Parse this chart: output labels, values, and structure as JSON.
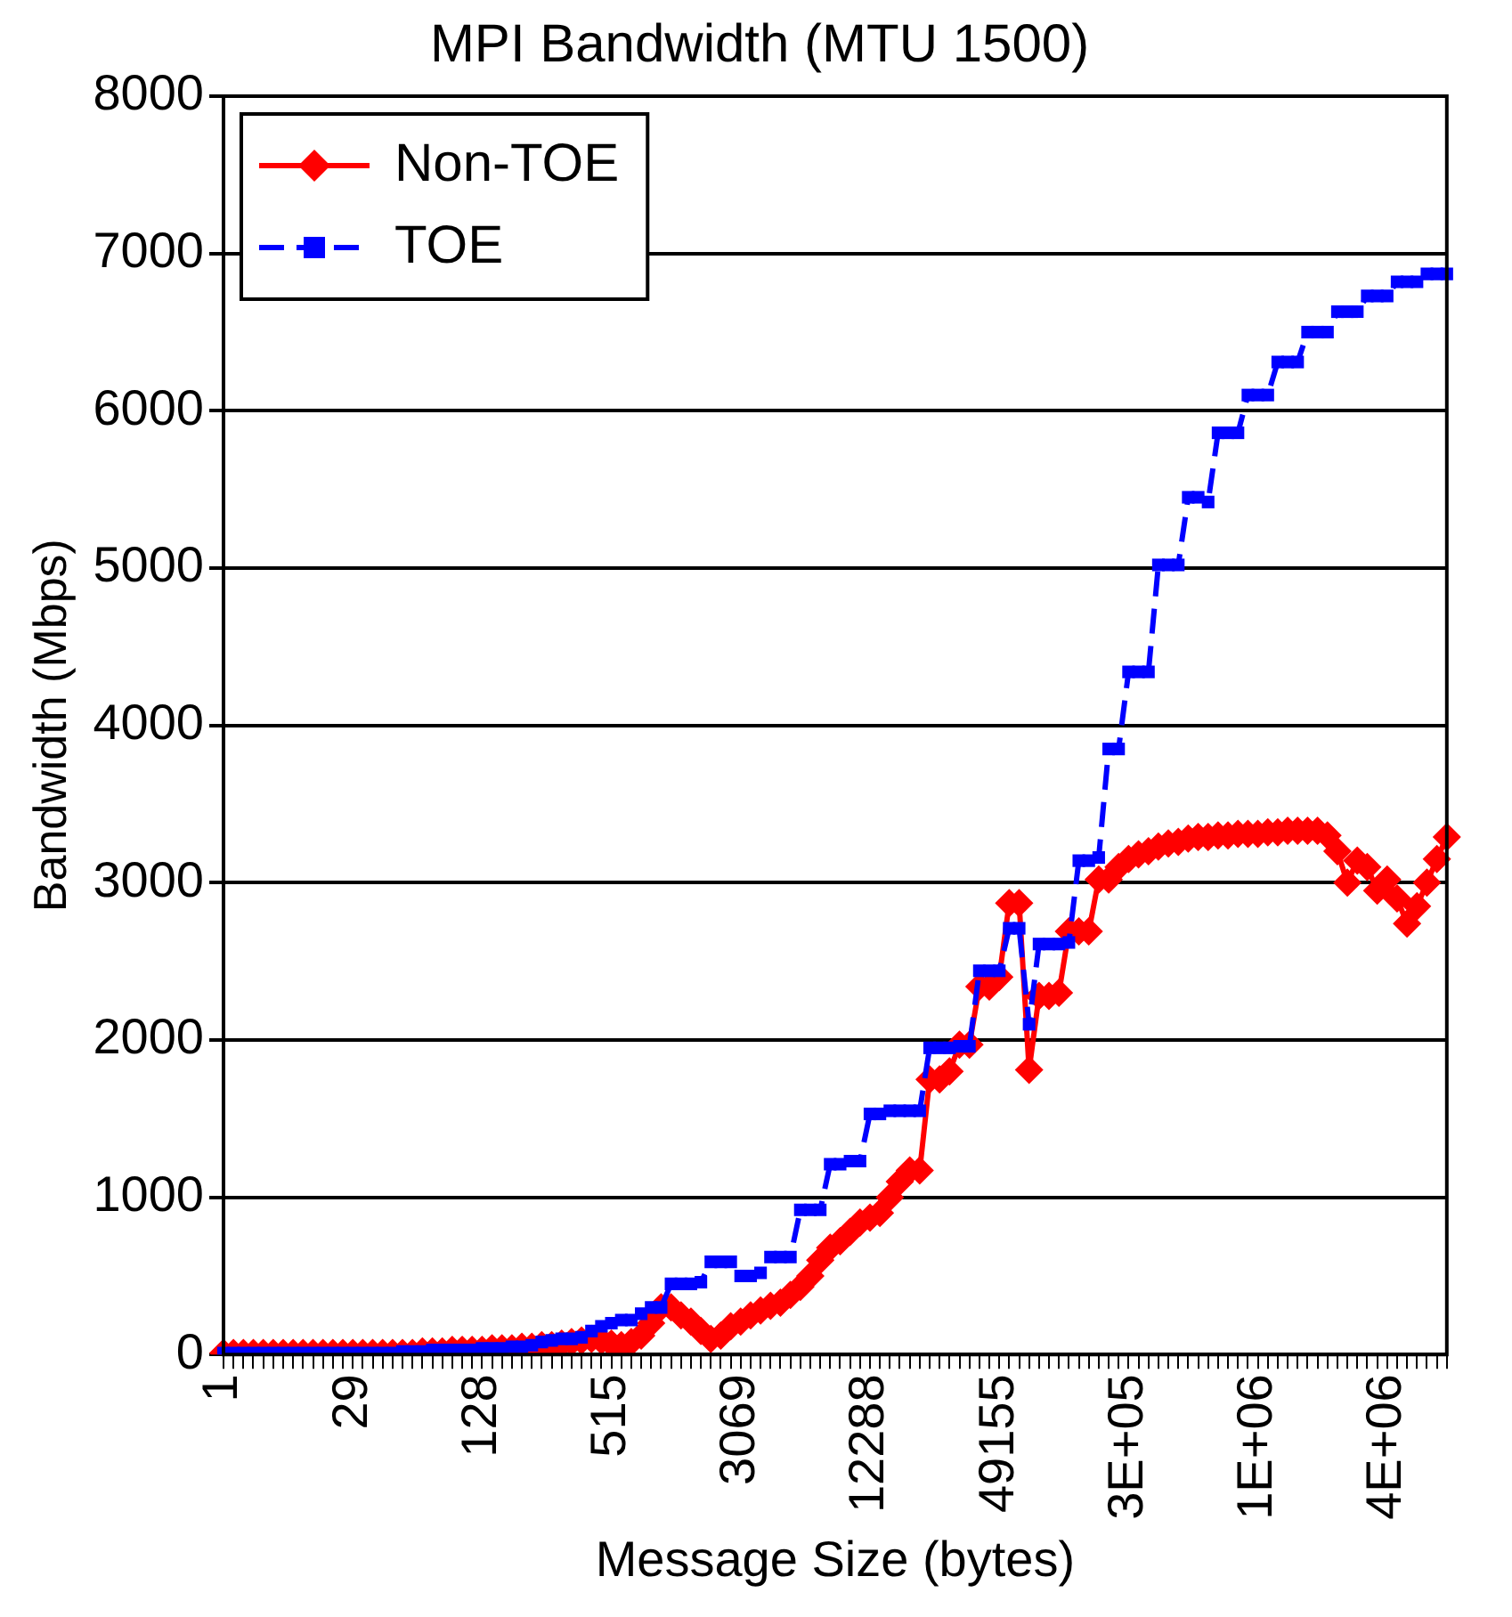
{
  "chart_data": {
    "type": "line",
    "title": "MPI Bandwidth (MTU 1500)",
    "xlabel": "Message Size (bytes)",
    "ylabel": "Bandwidth (Mbps)",
    "categories": [
      "1",
      null,
      null,
      null,
      null,
      null,
      null,
      null,
      null,
      null,
      null,
      null,
      null,
      "29",
      null,
      null,
      null,
      null,
      null,
      null,
      null,
      null,
      null,
      null,
      null,
      null,
      "128",
      null,
      null,
      null,
      null,
      null,
      null,
      null,
      null,
      null,
      null,
      null,
      null,
      "515",
      null,
      null,
      null,
      null,
      null,
      null,
      null,
      null,
      null,
      null,
      null,
      null,
      "3069",
      null,
      null,
      null,
      null,
      null,
      null,
      null,
      null,
      null,
      null,
      null,
      null,
      "12288",
      null,
      null,
      null,
      null,
      null,
      null,
      null,
      null,
      null,
      null,
      null,
      null,
      "49155",
      null,
      null,
      null,
      null,
      null,
      null,
      null,
      null,
      null,
      null,
      null,
      null,
      "3E+05",
      null,
      null,
      null,
      null,
      null,
      null,
      null,
      null,
      null,
      null,
      null,
      null,
      "1E+06",
      null,
      null,
      null,
      null,
      null,
      null,
      null,
      null,
      null,
      null,
      null,
      null,
      "4E+06",
      null,
      null,
      null,
      null,
      null,
      null
    ],
    "series": [
      {
        "name": "Non-TOE",
        "color": "#ff0000",
        "marker": "diamond",
        "line_style": "solid",
        "values": [
          10,
          10,
          10,
          10,
          10,
          10,
          10,
          10,
          10,
          10,
          10,
          10,
          10,
          10,
          10,
          10,
          10,
          10,
          10,
          10,
          20,
          20,
          20,
          30,
          30,
          30,
          30,
          40,
          40,
          40,
          50,
          50,
          60,
          60,
          70,
          80,
          90,
          100,
          90,
          70,
          60,
          80,
          120,
          200,
          300,
          300,
          250,
          210,
          150,
          100,
          120,
          180,
          210,
          250,
          280,
          310,
          330,
          380,
          430,
          500,
          600,
          680,
          720,
          780,
          840,
          870,
          900,
          1000,
          1100,
          1170,
          1170,
          1750,
          1750,
          1800,
          1970,
          1970,
          2340,
          2340,
          2400,
          2870,
          2870,
          1810,
          2280,
          2280,
          2300,
          2690,
          2690,
          2690,
          3020,
          3020,
          3100,
          3150,
          3180,
          3200,
          3230,
          3250,
          3260,
          3280,
          3290,
          3290,
          3300,
          3300,
          3310,
          3310,
          3310,
          3320,
          3320,
          3330,
          3330,
          3330,
          3330,
          3300,
          3200,
          3000,
          3140,
          3100,
          2950,
          3020,
          2900,
          2740,
          2850,
          3000,
          3150,
          3290
        ]
      },
      {
        "name": "TOE",
        "color": "#0000ff",
        "marker": "square",
        "line_style": "dashed",
        "values": [
          10,
          10,
          10,
          10,
          10,
          10,
          10,
          10,
          10,
          10,
          10,
          10,
          10,
          10,
          10,
          10,
          10,
          10,
          20,
          20,
          20,
          30,
          30,
          30,
          30,
          30,
          40,
          40,
          40,
          50,
          50,
          60,
          80,
          90,
          100,
          100,
          110,
          150,
          180,
          200,
          220,
          220,
          260,
          300,
          300,
          450,
          450,
          450,
          460,
          590,
          590,
          590,
          500,
          500,
          520,
          620,
          620,
          620,
          920,
          920,
          920,
          1210,
          1210,
          1230,
          1230,
          1530,
          1530,
          1550,
          1550,
          1550,
          1550,
          1950,
          1950,
          1950,
          1960,
          1960,
          2440,
          2440,
          2440,
          2710,
          2710,
          2100,
          2610,
          2610,
          2610,
          2620,
          3140,
          3140,
          3160,
          3850,
          3850,
          4340,
          4340,
          4340,
          5020,
          5020,
          5020,
          5450,
          5450,
          5420,
          5860,
          5860,
          5860,
          6100,
          6100,
          6100,
          6310,
          6310,
          6310,
          6500,
          6500,
          6500,
          6630,
          6630,
          6630,
          6730,
          6730,
          6730,
          6820,
          6820,
          6820,
          6870,
          6870,
          6870
        ]
      }
    ],
    "ylim": [
      0,
      8000
    ],
    "yticks": [
      0,
      1000,
      2000,
      3000,
      4000,
      5000,
      6000,
      7000,
      8000
    ],
    "grid": "y",
    "legend": "top left"
  }
}
